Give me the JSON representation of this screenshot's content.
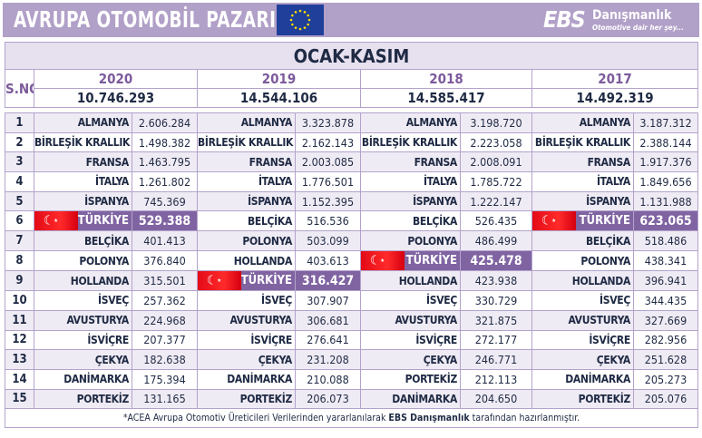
{
  "header": {
    "title": "AVRUPA OTOMOBİL PAZARI",
    "logo_ebs": "EBS",
    "logo_name": "Danışmanlık",
    "logo_tagline": "Otomotive dair her şey..."
  },
  "table": {
    "period": "OCAK-KASIM",
    "sno_label": "S.NO",
    "years": [
      {
        "year": "2020",
        "total": "10.746.293"
      },
      {
        "year": "2019",
        "total": "14.544.106"
      },
      {
        "year": "2018",
        "total": "14.585.417"
      },
      {
        "year": "2017",
        "total": "14.492.319"
      }
    ],
    "highlight_color": "#8064a2",
    "highlight_country": "TÜRKİYE",
    "rows": [
      {
        "no": "1",
        "cells": [
          [
            "ALMANYA",
            "2.606.284"
          ],
          [
            "ALMANYA",
            "3.323.878"
          ],
          [
            "ALMANYA",
            "3.198.720"
          ],
          [
            "ALMANYA",
            "3.187.312"
          ]
        ]
      },
      {
        "no": "2",
        "cells": [
          [
            "BİRLEŞİK KRALLIK",
            "1.498.382"
          ],
          [
            "BİRLEŞİK KRALLIK",
            "2.162.143"
          ],
          [
            "BİRLEŞİK KRALLIK",
            "2.223.058"
          ],
          [
            "BİRLEŞİK KRALLIK",
            "2.388.144"
          ]
        ]
      },
      {
        "no": "3",
        "cells": [
          [
            "FRANSA",
            "1.463.795"
          ],
          [
            "FRANSA",
            "2.003.085"
          ],
          [
            "FRANSA",
            "2.008.091"
          ],
          [
            "FRANSA",
            "1.917.376"
          ]
        ]
      },
      {
        "no": "4",
        "cells": [
          [
            "İTALYA",
            "1.261.802"
          ],
          [
            "İTALYA",
            "1.776.501"
          ],
          [
            "İTALYA",
            "1.785.722"
          ],
          [
            "İTALYA",
            "1.849.656"
          ]
        ]
      },
      {
        "no": "5",
        "cells": [
          [
            "İSPANYA",
            "745.369"
          ],
          [
            "İSPANYA",
            "1.152.395"
          ],
          [
            "İSPANYA",
            "1.222.147"
          ],
          [
            "İSPANYA",
            "1.131.988"
          ]
        ]
      },
      {
        "no": "6",
        "cells": [
          [
            "TÜRKİYE",
            "529.388"
          ],
          [
            "BELÇİKA",
            "516.536"
          ],
          [
            "BELÇİKA",
            "526.435"
          ],
          [
            "TÜRKİYE",
            "623.065"
          ]
        ]
      },
      {
        "no": "7",
        "cells": [
          [
            "BELÇİKA",
            "401.413"
          ],
          [
            "POLONYA",
            "503.099"
          ],
          [
            "POLONYA",
            "486.499"
          ],
          [
            "BELÇİKA",
            "518.486"
          ]
        ]
      },
      {
        "no": "8",
        "cells": [
          [
            "POLONYA",
            "376.840"
          ],
          [
            "HOLLANDA",
            "403.613"
          ],
          [
            "TÜRKİYE",
            "425.478"
          ],
          [
            "POLONYA",
            "438.341"
          ]
        ]
      },
      {
        "no": "9",
        "cells": [
          [
            "HOLLANDA",
            "315.501"
          ],
          [
            "TÜRKİYE",
            "316.427"
          ],
          [
            "HOLLANDA",
            "423.938"
          ],
          [
            "HOLLANDA",
            "396.941"
          ]
        ]
      },
      {
        "no": "10",
        "cells": [
          [
            "İSVEÇ",
            "257.362"
          ],
          [
            "İSVEÇ",
            "307.907"
          ],
          [
            "İSVEÇ",
            "330.729"
          ],
          [
            "İSVEÇ",
            "344.435"
          ]
        ]
      },
      {
        "no": "11",
        "cells": [
          [
            "AVUSTURYA",
            "224.968"
          ],
          [
            "AVUSTURYA",
            "306.681"
          ],
          [
            "AVUSTURYA",
            "321.875"
          ],
          [
            "AVUSTURYA",
            "327.669"
          ]
        ]
      },
      {
        "no": "12",
        "cells": [
          [
            "İSVİÇRE",
            "207.377"
          ],
          [
            "İSVİÇRE",
            "276.641"
          ],
          [
            "İSVİÇRE",
            "272.177"
          ],
          [
            "İSVİÇRE",
            "282.956"
          ]
        ]
      },
      {
        "no": "13",
        "cells": [
          [
            "ÇEKYA",
            "182.638"
          ],
          [
            "ÇEKYA",
            "231.208"
          ],
          [
            "ÇEKYA",
            "246.771"
          ],
          [
            "ÇEKYA",
            "251.628"
          ]
        ]
      },
      {
        "no": "14",
        "cells": [
          [
            "DANİMARKA",
            "175.394"
          ],
          [
            "DANİMARKA",
            "210.088"
          ],
          [
            "PORTEKİZ",
            "212.113"
          ],
          [
            "DANİMARKA",
            "205.273"
          ]
        ]
      },
      {
        "no": "15",
        "cells": [
          [
            "PORTEKİZ",
            "131.165"
          ],
          [
            "PORTEKİZ",
            "206.073"
          ],
          [
            "DANİMARKA",
            "204.650"
          ],
          [
            "PORTEKİZ",
            "205.076"
          ]
        ]
      }
    ],
    "footnote_pre": "*ACEA Avrupa Otomotiv Üreticileri Verilerinden yararlanılarak ",
    "footnote_bold": "EBS Danışmanlık",
    "footnote_post": " tarafından hazırlanmıştır."
  }
}
